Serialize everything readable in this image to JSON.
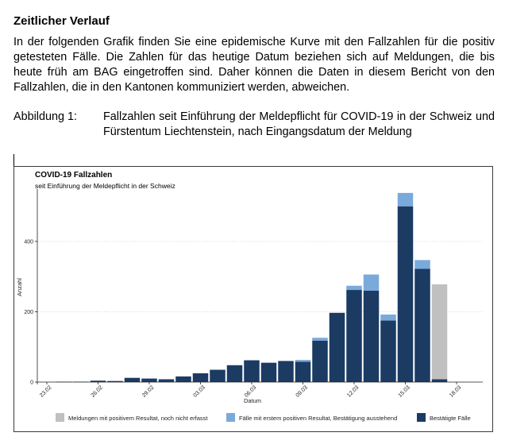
{
  "section_title": "Zeitlicher Verlauf",
  "intro_text": "In der folgenden Grafik finden Sie eine epidemische Kurve mit den Fallzahlen für die positiv getesteten Fälle. Die Zahlen für das heutige Datum beziehen sich auf Meldungen, die bis heute früh am BAG eingetroffen sind. Daher können die Daten in diesem Bericht von den Fallzahlen, die in den Kantonen kommuniziert werden, abweichen.",
  "caption": {
    "label": "Abbildung 1:",
    "text": "Fallzahlen seit Einführung der Meldepflicht für COVID-19 in der Schweiz und Fürstentum Liechtenstein, nach Eingangsdatum der Meldung"
  },
  "colors": {
    "confirmed": "#1b3b63",
    "pending": "#7aa9dc",
    "not_recorded": "#c0c0c0"
  },
  "chart_data": {
    "type": "bar",
    "stacked": true,
    "title": "COVID-19 Fallzahlen",
    "subtitle": "seit Einführung der Meldepflicht in der Schweiz",
    "xlabel": "Datum",
    "ylabel": "Anzahl",
    "ylim": [
      0,
      540
    ],
    "yticks": [
      0,
      200,
      400
    ],
    "grid": "horizontal-dotted",
    "legend_position": "bottom",
    "x_tick_labels": [
      "23.02",
      "26.02",
      "29.02",
      "03.03",
      "06.03",
      "09.03",
      "12.03",
      "15.03",
      "18.03"
    ],
    "x_tick_day_index": [
      0,
      3,
      6,
      9,
      12,
      15,
      18,
      21,
      24
    ],
    "first_day_index": 0,
    "series": [
      {
        "name": "Bestätigte Fälle",
        "color_key": "confirmed",
        "values": [
          0,
          1,
          1,
          4,
          3,
          12,
          10,
          8,
          16,
          25,
          35,
          48,
          62,
          55,
          60,
          58,
          118,
          197,
          262,
          260,
          175,
          500,
          322,
          8
        ]
      },
      {
        "name": "Fälle mit erstem positiven Resultat, Bestätigung ausstehend",
        "color_key": "pending",
        "values": [
          0,
          0,
          0,
          0,
          0,
          0,
          0,
          0,
          0,
          0,
          0,
          0,
          0,
          0,
          0,
          5,
          8,
          0,
          12,
          46,
          17,
          38,
          25,
          0
        ]
      },
      {
        "name": "Meldungen mit positivem Resultat, noch nicht erfasst",
        "color_key": "not_recorded",
        "values": [
          0,
          0,
          0,
          0,
          0,
          0,
          0,
          0,
          0,
          0,
          0,
          0,
          0,
          0,
          0,
          0,
          0,
          0,
          0,
          0,
          0,
          0,
          0,
          270
        ]
      }
    ],
    "legend_order": [
      2,
      1,
      0
    ]
  }
}
